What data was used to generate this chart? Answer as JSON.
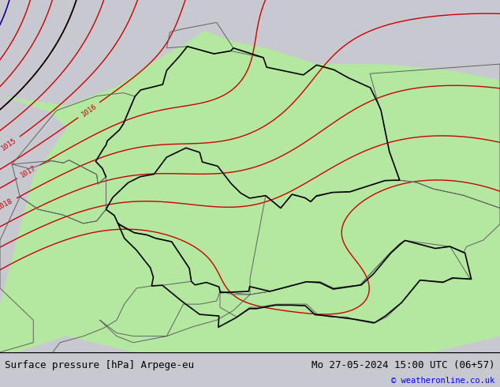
{
  "title_left": "Surface pressure [hPa] Arpege-eu",
  "title_right": "Mo 27-05-2024 15:00 UTC (06+57)",
  "copyright": "© weatheronline.co.uk",
  "bg_color": "#c8c8d0",
  "land_color": "#b4e8a0",
  "sea_color": "#c8c8d0",
  "border_color_germany": "#000000",
  "border_color_other": "#606060",
  "contour_color_red": "#cc0000",
  "contour_color_blue": "#0000bb",
  "contour_color_black": "#000000",
  "label_color_red": "#cc0000",
  "label_color_blue": "#0000bb",
  "label_color_black": "#000000",
  "bottom_bar_bg": "#ffffff",
  "figsize": [
    6.34,
    4.9
  ],
  "dpi": 100,
  "font_family": "monospace",
  "lon_min": 3.0,
  "lon_max": 18.0,
  "lat_min": 45.5,
  "lat_max": 56.5
}
